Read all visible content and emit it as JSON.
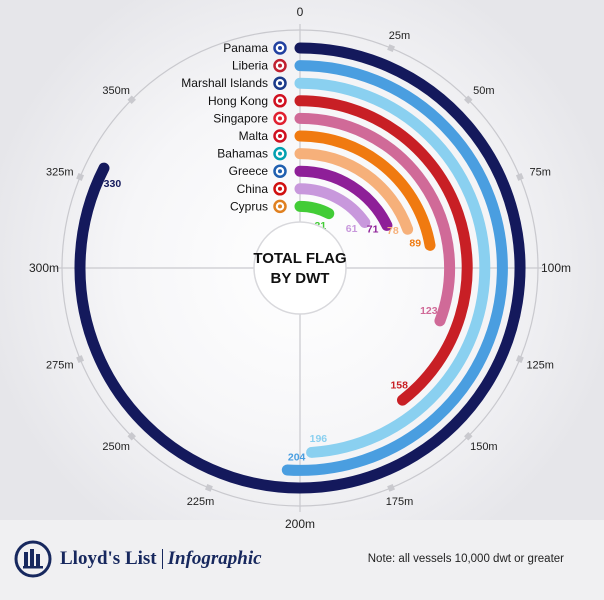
{
  "chart_data": {
    "type": "radial-bar",
    "title": "TOTAL FLAG BY DWT",
    "title_lines": [
      "TOTAL FLAG",
      "BY DWT"
    ],
    "unit": "m",
    "axis_max": 400,
    "ticks": [
      {
        "value": 0,
        "label": "0"
      },
      {
        "value": 25,
        "label": "25m"
      },
      {
        "value": 50,
        "label": "50m"
      },
      {
        "value": 75,
        "label": "75m"
      },
      {
        "value": 100,
        "label": "100m"
      },
      {
        "value": 125,
        "label": "125m"
      },
      {
        "value": 150,
        "label": "150m"
      },
      {
        "value": 175,
        "label": "175m"
      },
      {
        "value": 200,
        "label": "200m"
      },
      {
        "value": 225,
        "label": "225m"
      },
      {
        "value": 250,
        "label": "250m"
      },
      {
        "value": 275,
        "label": "275m"
      },
      {
        "value": 300,
        "label": "300m"
      },
      {
        "value": 325,
        "label": "325m"
      },
      {
        "value": 350,
        "label": "350m"
      }
    ],
    "series": [
      {
        "name": "Panama",
        "value": 330,
        "color": "#14195c",
        "label_color": "#14195c"
      },
      {
        "name": "Liberia",
        "value": 204,
        "color": "#4a9ee0",
        "label_color": "#4a9ee0"
      },
      {
        "name": "Marshall Islands",
        "value": 196,
        "color": "#8ad0f0",
        "label_color": "#8ad0f0"
      },
      {
        "name": "Hong Kong",
        "value": 158,
        "color": "#c81f25",
        "label_color": "#c81f25"
      },
      {
        "name": "Singapore",
        "value": 123,
        "color": "#d06a98",
        "label_color": "#d06a98"
      },
      {
        "name": "Malta",
        "value": 89,
        "color": "#f07a10",
        "label_color": "#f07a10"
      },
      {
        "name": "Bahamas",
        "value": 78,
        "color": "#f6b07a",
        "label_color": "#f6b07a"
      },
      {
        "name": "Greece",
        "value": 71,
        "color": "#8e1f98",
        "label_color": "#8e1f98"
      },
      {
        "name": "China",
        "value": 61,
        "color": "#c898dc",
        "label_color": "#c898dc"
      },
      {
        "name": "Cyprus",
        "value": 31,
        "color": "#42cc36",
        "label_color": "#42cc36"
      }
    ]
  },
  "flags": [
    {
      "country": "Panama",
      "icon": "panama-flag-icon",
      "color": "#2040a0"
    },
    {
      "country": "Liberia",
      "icon": "liberia-flag-icon",
      "color": "#c02030"
    },
    {
      "country": "Marshall Islands",
      "icon": "marshall-islands-flag-icon",
      "color": "#1a3a8a"
    },
    {
      "country": "Hong Kong",
      "icon": "hong-kong-flag-icon",
      "color": "#d01020"
    },
    {
      "country": "Singapore",
      "icon": "singapore-flag-icon",
      "color": "#e02030"
    },
    {
      "country": "Malta",
      "icon": "malta-flag-icon",
      "color": "#d01020"
    },
    {
      "country": "Bahamas",
      "icon": "bahamas-flag-icon",
      "color": "#00a0b0"
    },
    {
      "country": "Greece",
      "icon": "greece-flag-icon",
      "color": "#2060b0"
    },
    {
      "country": "China",
      "icon": "china-flag-icon",
      "color": "#d01010"
    },
    {
      "country": "Cyprus",
      "icon": "cyprus-flag-icon",
      "color": "#e08020"
    }
  ],
  "footer": {
    "brand": "Lloyd's List",
    "brand_sub": "Infographic",
    "note": "Note: all vessels 10,000 dwt or greater"
  }
}
